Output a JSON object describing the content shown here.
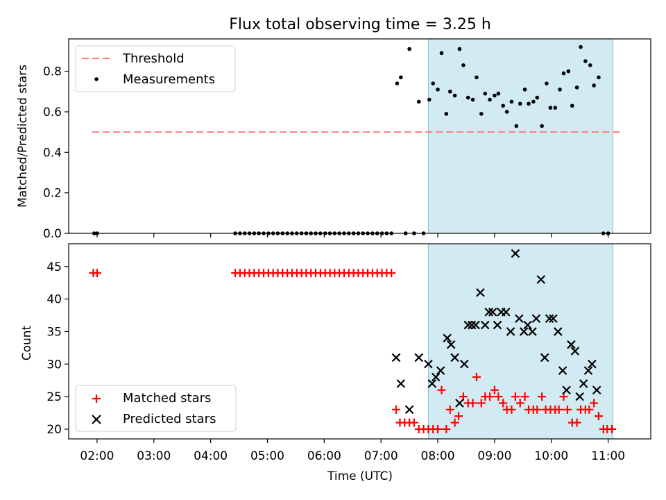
{
  "title": "Flux total observing time = 3.25 h",
  "xlabel": "Time (UTC)",
  "x_ticks": [
    "02:00",
    "03:00",
    "04:00",
    "05:00",
    "06:00",
    "07:00",
    "08:00",
    "09:00",
    "10:00",
    "11:00"
  ],
  "colors": {
    "threshold": "#ff7f7f",
    "measurement": "#000000",
    "matched": "#ff0000",
    "predicted": "#000000",
    "shade": "#add8e6"
  },
  "chart_data": [
    {
      "type": "scatter",
      "panel": "top",
      "xlabel": "",
      "ylabel": "Matched/Predicted stars",
      "xlim": [
        "01:30",
        "11:45"
      ],
      "ylim": [
        0,
        0.96
      ],
      "y_ticks": [
        "0.0",
        "0.2",
        "0.4",
        "0.6",
        "0.8"
      ],
      "shaded_interval": [
        "07:50",
        "11:05"
      ],
      "legend_position": "top-left",
      "threshold": {
        "name": "Threshold",
        "value": 0.5,
        "x": [
          "01:55",
          "11:12"
        ]
      },
      "series": [
        {
          "name": "Measurements",
          "points": [
            [
              "01:57",
              0
            ],
            [
              "02:00",
              0
            ],
            [
              "04:26",
              0
            ],
            [
              "04:31",
              0
            ],
            [
              "04:36",
              0
            ],
            [
              "04:41",
              0
            ],
            [
              "04:46",
              0
            ],
            [
              "04:51",
              0
            ],
            [
              "04:56",
              0
            ],
            [
              "05:01",
              0
            ],
            [
              "05:06",
              0
            ],
            [
              "05:11",
              0
            ],
            [
              "05:16",
              0
            ],
            [
              "05:21",
              0
            ],
            [
              "05:26",
              0
            ],
            [
              "05:31",
              0
            ],
            [
              "05:36",
              0
            ],
            [
              "05:41",
              0
            ],
            [
              "05:46",
              0
            ],
            [
              "05:51",
              0
            ],
            [
              "05:56",
              0
            ],
            [
              "06:01",
              0
            ],
            [
              "06:06",
              0
            ],
            [
              "06:11",
              0
            ],
            [
              "06:16",
              0
            ],
            [
              "06:21",
              0
            ],
            [
              "06:26",
              0
            ],
            [
              "06:31",
              0
            ],
            [
              "06:36",
              0
            ],
            [
              "06:41",
              0
            ],
            [
              "06:46",
              0
            ],
            [
              "06:51",
              0
            ],
            [
              "06:56",
              0
            ],
            [
              "07:01",
              0
            ],
            [
              "07:06",
              0
            ],
            [
              "07:11",
              0
            ],
            [
              "07:17",
              0.74
            ],
            [
              "07:21",
              0.77
            ],
            [
              "07:26",
              0
            ],
            [
              "07:30",
              0.91
            ],
            [
              "07:35",
              0
            ],
            [
              "07:40",
              0.65
            ],
            [
              "07:45",
              0
            ],
            [
              "07:51",
              0.66
            ],
            [
              "07:55",
              0.74
            ],
            [
              "08:00",
              0.71
            ],
            [
              "08:04",
              0.89
            ],
            [
              "08:09",
              0.59
            ],
            [
              "08:13",
              0.7
            ],
            [
              "08:18",
              0.68
            ],
            [
              "08:23",
              0.91
            ],
            [
              "08:27",
              0.83
            ],
            [
              "08:32",
              0.67
            ],
            [
              "08:37",
              0.66
            ],
            [
              "08:41",
              0.77
            ],
            [
              "08:46",
              0.59
            ],
            [
              "08:50",
              0.69
            ],
            [
              "08:55",
              0.66
            ],
            [
              "09:00",
              0.68
            ],
            [
              "09:04",
              0.69
            ],
            [
              "09:09",
              0.63
            ],
            [
              "09:13",
              0.6
            ],
            [
              "09:18",
              0.65
            ],
            [
              "09:23",
              0.53
            ],
            [
              "09:27",
              0.64
            ],
            [
              "09:32",
              0.71
            ],
            [
              "09:36",
              0.64
            ],
            [
              "09:41",
              0.65
            ],
            [
              "09:45",
              0.67
            ],
            [
              "09:50",
              0.53
            ],
            [
              "09:55",
              0.74
            ],
            [
              "09:59",
              0.62
            ],
            [
              "10:04",
              0.62
            ],
            [
              "10:09",
              0.71
            ],
            [
              "10:13",
              0.79
            ],
            [
              "10:18",
              0.8
            ],
            [
              "10:22",
              0.63
            ],
            [
              "10:27",
              0.72
            ],
            [
              "10:31",
              0.92
            ],
            [
              "10:36",
              0.85
            ],
            [
              "10:41",
              0.83
            ],
            [
              "10:45",
              0.73
            ],
            [
              "10:50",
              0.77
            ],
            [
              "10:55",
              0
            ],
            [
              "11:00",
              0
            ]
          ]
        }
      ]
    },
    {
      "type": "scatter",
      "panel": "bottom",
      "xlabel": "Time (UTC)",
      "ylabel": "Count",
      "xlim": [
        "01:30",
        "11:45"
      ],
      "ylim": [
        18.5,
        48.5
      ],
      "y_ticks": [
        "20",
        "25",
        "30",
        "35",
        "40",
        "45"
      ],
      "shaded_interval": [
        "07:50",
        "11:05"
      ],
      "legend_position": "bottom-left",
      "series": [
        {
          "name": "Matched stars",
          "marker": "plus",
          "points": [
            [
              "01:56",
              44
            ],
            [
              "02:00",
              44
            ],
            [
              "04:26",
              44
            ],
            [
              "04:31",
              44
            ],
            [
              "04:36",
              44
            ],
            [
              "04:41",
              44
            ],
            [
              "04:46",
              44
            ],
            [
              "04:51",
              44
            ],
            [
              "04:56",
              44
            ],
            [
              "05:01",
              44
            ],
            [
              "05:06",
              44
            ],
            [
              "05:11",
              44
            ],
            [
              "05:16",
              44
            ],
            [
              "05:21",
              44
            ],
            [
              "05:26",
              44
            ],
            [
              "05:31",
              44
            ],
            [
              "05:36",
              44
            ],
            [
              "05:41",
              44
            ],
            [
              "05:46",
              44
            ],
            [
              "05:51",
              44
            ],
            [
              "05:56",
              44
            ],
            [
              "06:01",
              44
            ],
            [
              "06:06",
              44
            ],
            [
              "06:11",
              44
            ],
            [
              "06:16",
              44
            ],
            [
              "06:21",
              44
            ],
            [
              "06:26",
              44
            ],
            [
              "06:31",
              44
            ],
            [
              "06:36",
              44
            ],
            [
              "06:41",
              44
            ],
            [
              "06:46",
              44
            ],
            [
              "06:51",
              44
            ],
            [
              "06:56",
              44
            ],
            [
              "07:01",
              44
            ],
            [
              "07:06",
              44
            ],
            [
              "07:11",
              44
            ],
            [
              "07:16",
              23
            ],
            [
              "07:20",
              21
            ],
            [
              "07:25",
              21
            ],
            [
              "07:30",
              21
            ],
            [
              "07:35",
              21
            ],
            [
              "07:40",
              20
            ],
            [
              "07:45",
              20
            ],
            [
              "07:50",
              20
            ],
            [
              "07:55",
              20
            ],
            [
              "08:00",
              20
            ],
            [
              "08:04",
              26
            ],
            [
              "08:09",
              20
            ],
            [
              "08:13",
              23
            ],
            [
              "08:18",
              21
            ],
            [
              "08:22",
              22
            ],
            [
              "08:27",
              25
            ],
            [
              "08:32",
              24
            ],
            [
              "08:37",
              24
            ],
            [
              "08:41",
              28
            ],
            [
              "08:46",
              24
            ],
            [
              "08:50",
              25
            ],
            [
              "08:55",
              25
            ],
            [
              "09:00",
              26
            ],
            [
              "09:04",
              25
            ],
            [
              "09:09",
              24
            ],
            [
              "09:13",
              23
            ],
            [
              "09:18",
              23
            ],
            [
              "09:22",
              25
            ],
            [
              "09:27",
              24
            ],
            [
              "09:32",
              25
            ],
            [
              "09:36",
              23
            ],
            [
              "09:41",
              23
            ],
            [
              "09:45",
              23
            ],
            [
              "09:50",
              25
            ],
            [
              "09:54",
              23
            ],
            [
              "09:59",
              23
            ],
            [
              "10:04",
              23
            ],
            [
              "10:08",
              23
            ],
            [
              "10:13",
              25
            ],
            [
              "10:17",
              23
            ],
            [
              "10:22",
              21
            ],
            [
              "10:27",
              21
            ],
            [
              "10:31",
              23
            ],
            [
              "10:36",
              23
            ],
            [
              "10:40",
              23
            ],
            [
              "10:45",
              24
            ],
            [
              "10:50",
              22
            ],
            [
              "10:55",
              20
            ],
            [
              "10:59",
              20
            ],
            [
              "11:04",
              20
            ]
          ]
        },
        {
          "name": "Predicted stars",
          "marker": "x",
          "points": [
            [
              "07:16",
              31
            ],
            [
              "07:21",
              27
            ],
            [
              "07:30",
              23
            ],
            [
              "07:40",
              31
            ],
            [
              "07:50",
              30
            ],
            [
              "07:54",
              27
            ],
            [
              "07:58",
              28
            ],
            [
              "08:03",
              29
            ],
            [
              "08:10",
              34
            ],
            [
              "08:14",
              33
            ],
            [
              "08:18",
              31
            ],
            [
              "08:23",
              24
            ],
            [
              "08:28",
              30
            ],
            [
              "08:32",
              36
            ],
            [
              "08:36",
              36
            ],
            [
              "08:40",
              36
            ],
            [
              "08:45",
              41
            ],
            [
              "08:50",
              36
            ],
            [
              "08:54",
              38
            ],
            [
              "08:58",
              38
            ],
            [
              "09:03",
              36
            ],
            [
              "09:07",
              38
            ],
            [
              "09:12",
              38
            ],
            [
              "09:17",
              35
            ],
            [
              "09:22",
              47
            ],
            [
              "09:26",
              37
            ],
            [
              "09:31",
              35
            ],
            [
              "09:35",
              36
            ],
            [
              "09:40",
              35
            ],
            [
              "09:44",
              37
            ],
            [
              "09:49",
              43
            ],
            [
              "09:53",
              31
            ],
            [
              "09:58",
              37
            ],
            [
              "10:02",
              37
            ],
            [
              "10:07",
              35
            ],
            [
              "10:12",
              29
            ],
            [
              "10:16",
              26
            ],
            [
              "10:21",
              33
            ],
            [
              "10:25",
              32
            ],
            [
              "10:30",
              25
            ],
            [
              "10:34",
              27
            ],
            [
              "10:39",
              29
            ],
            [
              "10:43",
              30
            ],
            [
              "10:48",
              26
            ]
          ]
        }
      ]
    }
  ]
}
